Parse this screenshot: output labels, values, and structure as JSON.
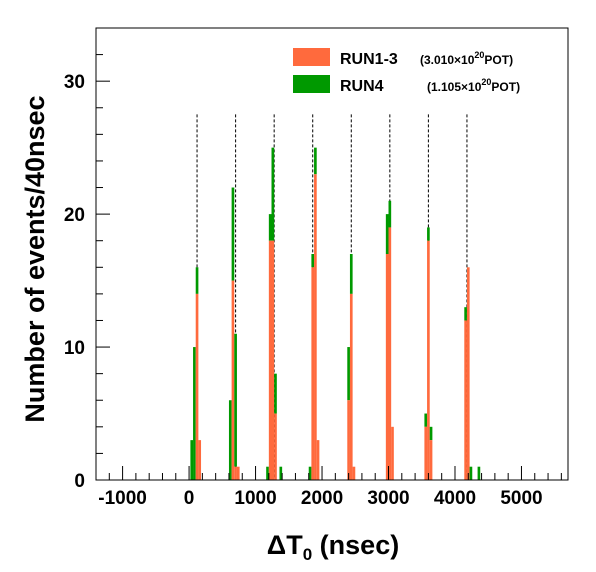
{
  "chart_data": {
    "type": "bar",
    "subtype": "stacked-histogram",
    "xlabel_symbol": "ΔT",
    "xlabel_subscript": "0",
    "xlabel_unit": "(nsec)",
    "ylabel": "Number of events/40nsec",
    "xlim": [
      -1400,
      5700
    ],
    "ylim": [
      0,
      34
    ],
    "x_ticks": [
      -1000,
      0,
      1000,
      2000,
      3000,
      4000,
      5000
    ],
    "y_ticks": [
      0,
      10,
      20,
      30
    ],
    "bin_width": 40,
    "grid": false,
    "legend_position": "top-right",
    "colors": {
      "run13": "#ff6a3d",
      "run4": "#009900",
      "reference_line": "#000000"
    },
    "series": [
      {
        "name": "RUN1-3",
        "pot_mantissa": "3.010",
        "pot_exp": "20",
        "pot_unit": "POT",
        "color": "#ff6a3d"
      },
      {
        "name": "RUN4",
        "pot_mantissa": "1.105",
        "pot_exp": "20",
        "pot_unit": "POT",
        "color": "#009900"
      }
    ],
    "bunch_centers": [
      120,
      700,
      1280,
      1860,
      2440,
      3020,
      3600,
      4180
    ],
    "bins": [
      {
        "x": 20,
        "run13": 0,
        "run4": 3
      },
      {
        "x": 60,
        "run13": 0,
        "run4": 10
      },
      {
        "x": 100,
        "run13": 14,
        "run4": 16
      },
      {
        "x": 140,
        "run13": 3,
        "run4": 3
      },
      {
        "x": 600,
        "run13": 0,
        "run4": 6
      },
      {
        "x": 640,
        "run13": 15,
        "run4": 22
      },
      {
        "x": 680,
        "run13": 1,
        "run4": 11
      },
      {
        "x": 720,
        "run13": 1,
        "run4": 1
      },
      {
        "x": 1160,
        "run13": 0,
        "run4": 1
      },
      {
        "x": 1200,
        "run13": 18,
        "run4": 20
      },
      {
        "x": 1240,
        "run13": 18,
        "run4": 25
      },
      {
        "x": 1280,
        "run13": 5,
        "run4": 8
      },
      {
        "x": 1360,
        "run13": 0,
        "run4": 1
      },
      {
        "x": 1800,
        "run13": 0,
        "run4": 1
      },
      {
        "x": 1840,
        "run13": 16,
        "run4": 17
      },
      {
        "x": 1880,
        "run13": 23,
        "run4": 25
      },
      {
        "x": 1920,
        "run13": 3,
        "run4": 3
      },
      {
        "x": 2380,
        "run13": 6,
        "run4": 10
      },
      {
        "x": 2420,
        "run13": 14,
        "run4": 17
      },
      {
        "x": 2460,
        "run13": 1,
        "run4": 1
      },
      {
        "x": 2960,
        "run13": 17,
        "run4": 20
      },
      {
        "x": 3000,
        "run13": 19,
        "run4": 21
      },
      {
        "x": 3040,
        "run13": 4,
        "run4": 4
      },
      {
        "x": 3540,
        "run13": 4,
        "run4": 5
      },
      {
        "x": 3580,
        "run13": 18,
        "run4": 19
      },
      {
        "x": 3620,
        "run13": 3,
        "run4": 4
      },
      {
        "x": 4140,
        "run13": 12,
        "run4": 13
      },
      {
        "x": 4180,
        "run13": 16,
        "run4": 16
      },
      {
        "x": 4220,
        "run13": 0,
        "run4": 1
      },
      {
        "x": 4340,
        "run13": 0,
        "run4": 1
      }
    ]
  }
}
